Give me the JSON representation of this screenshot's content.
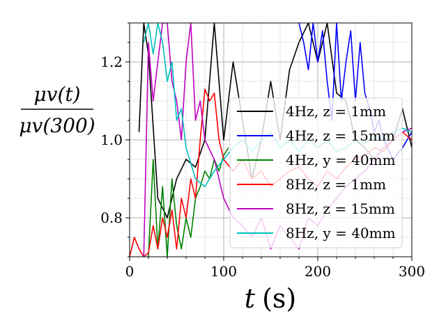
{
  "chart_data": {
    "type": "line",
    "xlabel": "t (s)",
    "xlabel_var": "t",
    "xlabel_unit": "(s)",
    "ylabel_numerator": "μv(t)",
    "ylabel_denominator": "μv(300)",
    "xlim": [
      0,
      300
    ],
    "ylim": [
      0.7,
      1.3
    ],
    "xticks": [
      0,
      100,
      200,
      300
    ],
    "xtick_labels": [
      "0",
      "100",
      "200",
      "300"
    ],
    "yticks": [
      0.8,
      1.0,
      1.2
    ],
    "ytick_labels": [
      "0.8",
      "1.0",
      "1.2"
    ],
    "grid": true,
    "legend_position": "lower-right",
    "series": [
      {
        "name": "4Hz, z = 1mm",
        "color": "#000000",
        "x": [
          10,
          15,
          20,
          30,
          40,
          50,
          60,
          70,
          80,
          90,
          100,
          110,
          120,
          130,
          140,
          150,
          160,
          170,
          180,
          190,
          200,
          210,
          220,
          230,
          240,
          250,
          260,
          270,
          280,
          290,
          300
        ],
        "y": [
          1.02,
          1.3,
          1.22,
          0.85,
          0.8,
          0.9,
          0.95,
          0.93,
          1.0,
          1.3,
          1.0,
          1.2,
          1.05,
          0.9,
          1.0,
          1.15,
          1.0,
          1.18,
          1.25,
          1.3,
          1.2,
          1.3,
          1.12,
          1.1,
          1.0,
          0.98,
          0.95,
          0.98,
          1.0,
          1.08,
          0.98
        ]
      },
      {
        "name": "4Hz, z = 15mm",
        "color": "#0000ff",
        "x": [
          180,
          185,
          190,
          195,
          200,
          205,
          210,
          215,
          220,
          225,
          230,
          235,
          240,
          245,
          250,
          255,
          260,
          265,
          270,
          280,
          290,
          295,
          300
        ],
        "y": [
          1.3,
          1.25,
          1.18,
          1.3,
          1.2,
          1.28,
          1.15,
          1.05,
          1.3,
          1.1,
          1.2,
          1.28,
          1.1,
          1.25,
          1.12,
          1.08,
          1.02,
          1.05,
          1.0,
          0.95,
          0.98,
          1.0,
          1.02
        ]
      },
      {
        "name": "4Hz, y = 40mm",
        "color": "#008000",
        "x": [
          20,
          25,
          30,
          35,
          40,
          45,
          50,
          55,
          60,
          65,
          70,
          75,
          80,
          85,
          90,
          95,
          100,
          105
        ],
        "y": [
          0.7,
          0.95,
          0.72,
          0.88,
          0.7,
          0.9,
          0.78,
          0.72,
          0.8,
          0.75,
          0.85,
          0.88,
          0.92,
          0.9,
          0.95,
          0.92,
          0.96,
          0.98
        ]
      },
      {
        "name": "8Hz, z = 1mm",
        "color": "#ff0000",
        "x": [
          0,
          5,
          10,
          15,
          20,
          25,
          30,
          35,
          40,
          45,
          50,
          55,
          60,
          65,
          70,
          75,
          80,
          85,
          90,
          95,
          100,
          110,
          120,
          130,
          140,
          150,
          160,
          170,
          180,
          190,
          200,
          210,
          220,
          230,
          240,
          250,
          260,
          270,
          280,
          290,
          300
        ],
        "y": [
          0.7,
          0.75,
          0.72,
          0.7,
          0.71,
          0.78,
          0.72,
          0.8,
          0.75,
          0.82,
          0.72,
          0.85,
          0.8,
          0.9,
          0.85,
          1.0,
          1.13,
          1.1,
          1.12,
          1.0,
          0.95,
          0.92,
          0.95,
          0.9,
          0.92,
          0.88,
          0.9,
          0.92,
          0.93,
          0.9,
          0.88,
          0.92,
          0.9,
          0.93,
          0.95,
          0.96,
          0.98,
          0.97,
          1.0,
          1.02,
          1.0
        ]
      },
      {
        "name": "8Hz, z = 15mm",
        "color": "#bf00bf",
        "x": [
          15,
          20,
          25,
          30,
          35,
          40,
          45,
          50,
          55,
          60,
          65,
          70,
          75,
          80,
          90,
          100,
          110,
          120,
          130,
          140,
          150,
          160,
          170,
          180,
          190,
          200,
          210,
          220,
          230,
          240,
          250,
          260,
          270,
          280,
          290,
          300
        ],
        "y": [
          0.7,
          1.25,
          1.1,
          1.2,
          1.3,
          1.3,
          1.15,
          1.1,
          1.0,
          1.2,
          1.3,
          1.05,
          1.1,
          1.0,
          0.95,
          0.85,
          0.8,
          0.78,
          0.75,
          0.8,
          0.72,
          0.78,
          0.75,
          0.72,
          0.8,
          0.78,
          0.82,
          0.85,
          0.88,
          0.9,
          0.92,
          0.95,
          0.98,
          1.0,
          1.02,
          1.03
        ]
      },
      {
        "name": "8Hz, y = 40mm",
        "color": "#00bfbf",
        "x": [
          15,
          20,
          25,
          30,
          35,
          40,
          45,
          50,
          55,
          60,
          70,
          80,
          90,
          100,
          110,
          120,
          130,
          140,
          150,
          160,
          170,
          180,
          190,
          200,
          210,
          220,
          230,
          240,
          250,
          260,
          270,
          280,
          290,
          300
        ],
        "y": [
          1.25,
          1.3,
          1.22,
          1.3,
          1.25,
          1.15,
          1.2,
          1.05,
          1.08,
          0.98,
          0.9,
          0.88,
          0.92,
          0.95,
          0.98,
          1.0,
          0.97,
          1.0,
          1.02,
          0.98,
          1.0,
          0.97,
          1.0,
          0.98,
          1.0,
          0.97,
          0.98,
          1.0,
          0.99,
          1.01,
          1.0,
          1.02,
          1.03,
          1.02
        ]
      }
    ]
  }
}
